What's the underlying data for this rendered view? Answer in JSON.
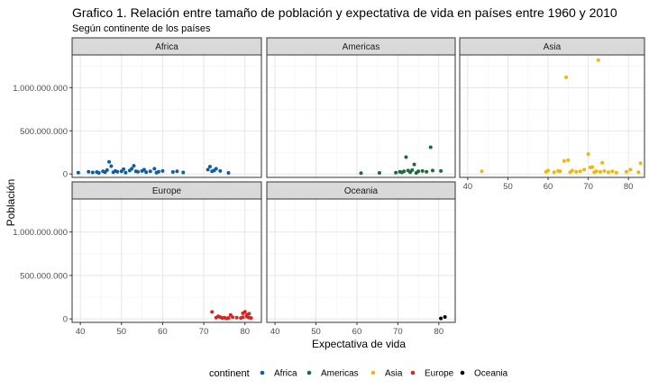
{
  "chart_data": {
    "type": "scatter",
    "title": "Grafico 1. Relación entre tamaño de población y expectativa de vida en países entre 1960 y 2010",
    "subtitle": "Según continente de los países",
    "xlabel": "Expectativa de vida",
    "ylabel": "Población",
    "xlim": [
      38,
      84
    ],
    "ylim": [
      -40000000,
      1380000000
    ],
    "x_ticks": [
      40,
      50,
      60,
      70,
      80
    ],
    "y_ticks": [
      0,
      500000000,
      1000000000
    ],
    "y_tick_labels": [
      "0",
      "500.000.000",
      "1.000.000.000"
    ],
    "grid": true,
    "legend": {
      "title": "continent",
      "placement": "bottom",
      "entries": [
        {
          "name": "Africa",
          "color": "#0d5ea3"
        },
        {
          "name": "Americas",
          "color": "#1b6b3a"
        },
        {
          "name": "Asia",
          "color": "#f2b705"
        },
        {
          "name": "Europe",
          "color": "#d92323"
        },
        {
          "name": "Oceania",
          "color": "#000000"
        }
      ]
    },
    "facets": [
      {
        "name": "Africa",
        "color": "#0d5ea3",
        "points": [
          [
            39.5,
            15000000
          ],
          [
            42,
            25000000
          ],
          [
            43,
            18000000
          ],
          [
            44,
            22000000
          ],
          [
            44.5,
            12000000
          ],
          [
            45.5,
            30000000
          ],
          [
            46,
            20000000
          ],
          [
            46.5,
            45000000
          ],
          [
            47,
            140000000
          ],
          [
            47.5,
            90000000
          ],
          [
            48,
            20000000
          ],
          [
            48.5,
            35000000
          ],
          [
            49,
            25000000
          ],
          [
            50,
            30000000
          ],
          [
            50.5,
            55000000
          ],
          [
            51,
            15000000
          ],
          [
            52,
            40000000
          ],
          [
            52.5,
            60000000
          ],
          [
            53,
            95000000
          ],
          [
            53.5,
            30000000
          ],
          [
            54,
            25000000
          ],
          [
            55,
            35000000
          ],
          [
            55.5,
            50000000
          ],
          [
            56,
            20000000
          ],
          [
            57,
            30000000
          ],
          [
            58,
            60000000
          ],
          [
            58.5,
            15000000
          ],
          [
            59,
            25000000
          ],
          [
            60,
            35000000
          ],
          [
            62.5,
            22000000
          ],
          [
            63.5,
            30000000
          ],
          [
            65,
            18000000
          ],
          [
            71,
            50000000
          ],
          [
            71.5,
            85000000
          ],
          [
            72,
            30000000
          ],
          [
            72.5,
            40000000
          ],
          [
            73,
            60000000
          ],
          [
            74,
            35000000
          ],
          [
            76,
            12000000
          ]
        ]
      },
      {
        "name": "Americas",
        "color": "#1b6b3a",
        "points": [
          [
            61,
            10000000
          ],
          [
            65.5,
            12000000
          ],
          [
            69.5,
            15000000
          ],
          [
            70.5,
            25000000
          ],
          [
            71,
            18000000
          ],
          [
            71.5,
            30000000
          ],
          [
            72,
            195000000
          ],
          [
            72.5,
            40000000
          ],
          [
            73,
            20000000
          ],
          [
            73.5,
            45000000
          ],
          [
            74,
            110000000
          ],
          [
            74.5,
            12000000
          ],
          [
            75,
            30000000
          ],
          [
            76,
            35000000
          ],
          [
            77,
            25000000
          ],
          [
            78,
            310000000
          ],
          [
            78.5,
            40000000
          ],
          [
            80.5,
            35000000
          ]
        ]
      },
      {
        "name": "Asia",
        "color": "#f2b705",
        "points": [
          [
            43.5,
            30000000
          ],
          [
            59.5,
            25000000
          ],
          [
            60,
            40000000
          ],
          [
            61.5,
            20000000
          ],
          [
            62.5,
            35000000
          ],
          [
            63,
            30000000
          ],
          [
            64,
            150000000
          ],
          [
            64.5,
            1120000000
          ],
          [
            65,
            160000000
          ],
          [
            65.5,
            20000000
          ],
          [
            66,
            40000000
          ],
          [
            67,
            25000000
          ],
          [
            68,
            30000000
          ],
          [
            69,
            50000000
          ],
          [
            70,
            230000000
          ],
          [
            70.5,
            75000000
          ],
          [
            71,
            80000000
          ],
          [
            71.5,
            20000000
          ],
          [
            72,
            30000000
          ],
          [
            72.5,
            1320000000
          ],
          [
            73,
            25000000
          ],
          [
            73.5,
            130000000
          ],
          [
            74,
            35000000
          ],
          [
            75,
            20000000
          ],
          [
            76,
            30000000
          ],
          [
            77,
            15000000
          ],
          [
            79.5,
            25000000
          ],
          [
            80.5,
            50000000
          ],
          [
            82.5,
            20000000
          ],
          [
            83,
            125000000
          ]
        ]
      },
      {
        "name": "Europe",
        "color": "#d92323",
        "points": [
          [
            72,
            80000000
          ],
          [
            73,
            15000000
          ],
          [
            73.5,
            30000000
          ],
          [
            74,
            20000000
          ],
          [
            74.5,
            10000000
          ],
          [
            75,
            15000000
          ],
          [
            75.5,
            5000000
          ],
          [
            76,
            10000000
          ],
          [
            76.5,
            45000000
          ],
          [
            77,
            20000000
          ],
          [
            78,
            15000000
          ],
          [
            79,
            10000000
          ],
          [
            79.5,
            65000000
          ],
          [
            80,
            82000000
          ],
          [
            80.5,
            45000000
          ],
          [
            81,
            60000000
          ],
          [
            81.5,
            10000000
          ],
          [
            79.5,
            20000000
          ],
          [
            80.5,
            25000000
          ],
          [
            81,
            15000000
          ]
        ]
      },
      {
        "name": "Oceania",
        "color": "#000000",
        "points": [
          [
            80.5,
            5000000
          ],
          [
            81.5,
            22000000
          ]
        ]
      }
    ]
  }
}
